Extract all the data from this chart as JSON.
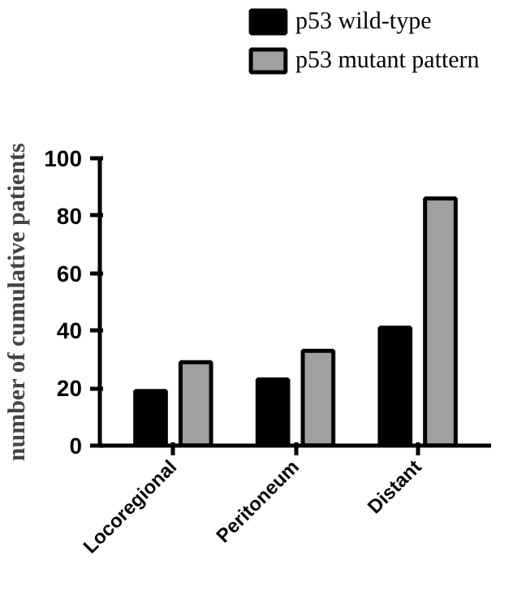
{
  "chart_data": {
    "type": "bar",
    "ylabel": "number of cumulative patients",
    "categories": [
      "Locoregional",
      "Peritoneum",
      "Distant"
    ],
    "series": [
      {
        "name": "p53 wild-type",
        "color": "#000000",
        "values": [
          19,
          23,
          41
        ]
      },
      {
        "name": "p53 mutant pattern",
        "color": "#a0a0a0",
        "values": [
          29,
          33,
          86
        ]
      }
    ],
    "ylim": [
      0,
      100
    ],
    "yticks": [
      0,
      20,
      40,
      60,
      80,
      100
    ],
    "grid": false,
    "legend": "top right"
  }
}
